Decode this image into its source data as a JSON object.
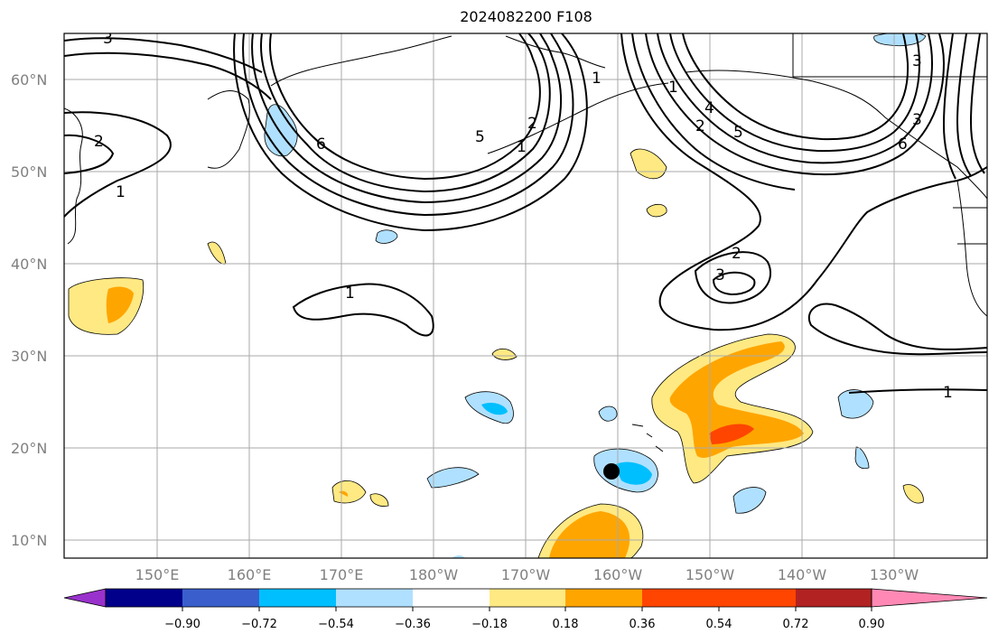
{
  "title": "2024082200 F108",
  "lat_labels": [
    "60°N",
    "50°N",
    "40°N",
    "30°N",
    "20°N",
    "10°N"
  ],
  "lon_labels": [
    "150°E",
    "160°E",
    "170°E",
    "180°W",
    "170°W",
    "160°W",
    "150°W",
    "140°W",
    "130°W"
  ],
  "colorbar": {
    "colors": [
      "#9932cc",
      "#00008b",
      "#3a5fcd",
      "#00bfff",
      "#b0e0ff",
      "#ffffff",
      "#ffe983",
      "#ffa500",
      "#ff4500",
      "#b22222",
      "#ff89b4"
    ],
    "labels": [
      "−0.90",
      "−0.72",
      "−0.54",
      "−0.36",
      "−0.18",
      "0.18",
      "0.36",
      "0.54",
      "0.72",
      "0.90"
    ]
  },
  "contour_labels": [
    "3",
    "2",
    "1",
    "1",
    "2",
    "3",
    "5",
    "6",
    "5",
    "4",
    "2",
    "1",
    "1",
    "3",
    "6",
    "2",
    "3",
    "1",
    "1"
  ],
  "marker": "storm-center-dot"
}
